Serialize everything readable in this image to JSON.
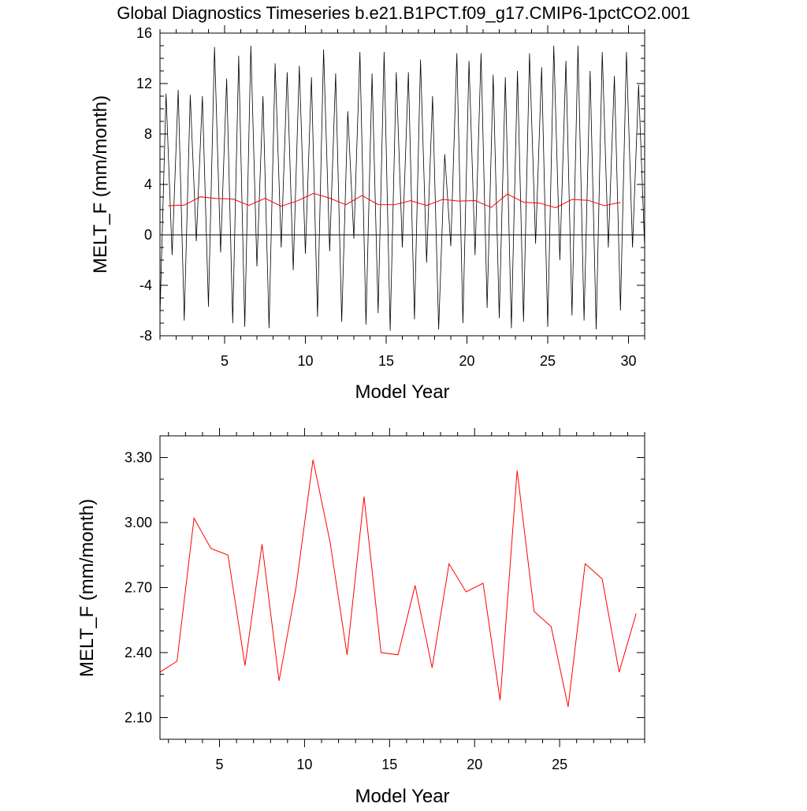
{
  "title": "Global Diagnostics Timeseries b.e21.B1PCT.f09_g17.CMIP6-1pctCO2.001",
  "colors": {
    "monthly": "#000000",
    "annual": "#ff0000",
    "zero_line": "#000000"
  },
  "chart_data": [
    {
      "type": "line",
      "xlabel": "Model Year",
      "ylabel": "MELT_F (mm/month)",
      "xlim": [
        1,
        31
      ],
      "ylim": [
        -8,
        16
      ],
      "x_ticks": [
        5,
        10,
        15,
        20,
        25,
        30
      ],
      "y_ticks": [
        -8,
        -4,
        0,
        4,
        8,
        12,
        16
      ],
      "y_tick_labels": [
        "-8",
        "-4",
        "0",
        "4",
        "8",
        "12",
        "16"
      ],
      "x_tick_labels": [
        "5",
        "10",
        "15",
        "20",
        "25",
        "30"
      ],
      "reference_line_y": 0,
      "series": [
        {
          "style": "monthly",
          "monthly_peaks": [
            11.2,
            11.5,
            11.1,
            11.0,
            14.9,
            12.4,
            14.2,
            15.0,
            11.0,
            13.6,
            12.9,
            13.4,
            12.5,
            14.7,
            12.8,
            9.8,
            14.5,
            12.8,
            14.5,
            12.9,
            12.9,
            13.9,
            11.0,
            6.4,
            14.4,
            13.8,
            14.4,
            12.7,
            12.5,
            13.0,
            14.4,
            13.3,
            15.0,
            13.8,
            15.0,
            13.0,
            14.5,
            12.6,
            14.5,
            11.9
          ],
          "monthly_troughs": [
            -6.4,
            -1.6,
            -6.8,
            -0.5,
            -5.7,
            -1.4,
            -7.0,
            -7.3,
            -2.5,
            -7.4,
            -1.0,
            -2.8,
            -1.5,
            -6.5,
            -1.3,
            -6.9,
            -0.3,
            -7.1,
            -6.2,
            -7.6,
            -1.0,
            -6.7,
            -2.2,
            -7.5,
            -0.9,
            -7.0,
            -1.6,
            -5.8,
            -6.6,
            -7.4,
            -6.9,
            -0.7,
            -7.3,
            -2.0,
            -6.4,
            -6.8,
            -7.5,
            -1.0,
            -6.0,
            -1.0
          ]
        },
        {
          "style": "annual",
          "x": [
            1.5,
            2.5,
            3.5,
            4.5,
            5.5,
            6.5,
            7.5,
            8.5,
            9.5,
            10.5,
            11.5,
            12.5,
            13.5,
            14.5,
            15.5,
            16.5,
            17.5,
            18.5,
            19.5,
            20.5,
            21.5,
            22.5,
            23.5,
            24.5,
            25.5,
            26.5,
            27.5,
            28.5,
            29.5
          ],
          "values": [
            2.31,
            2.36,
            3.02,
            2.88,
            2.85,
            2.34,
            2.9,
            2.27,
            2.7,
            3.29,
            2.91,
            2.39,
            3.12,
            2.4,
            2.39,
            2.71,
            2.33,
            2.81,
            2.68,
            2.72,
            2.18,
            3.24,
            2.59,
            2.52,
            2.15,
            2.81,
            2.74,
            2.31,
            2.58
          ]
        }
      ]
    },
    {
      "type": "line",
      "xlabel": "Model Year",
      "ylabel": "MELT_F (mm/month)",
      "xlim": [
        1.5,
        30
      ],
      "ylim": [
        2.0,
        3.4
      ],
      "x_ticks": [
        5,
        10,
        15,
        20,
        25
      ],
      "y_ticks": [
        2.1,
        2.4,
        2.7,
        3.0,
        3.3
      ],
      "y_tick_labels": [
        "2.10",
        "2.40",
        "2.70",
        "3.00",
        "3.30"
      ],
      "x_tick_labels": [
        "5",
        "10",
        "15",
        "20",
        "25"
      ],
      "series": [
        {
          "style": "annual",
          "x": [
            1.5,
            2.5,
            3.5,
            4.5,
            5.5,
            6.5,
            7.5,
            8.5,
            9.5,
            10.5,
            11.5,
            12.5,
            13.5,
            14.5,
            15.5,
            16.5,
            17.5,
            18.5,
            19.5,
            20.5,
            21.5,
            22.5,
            23.5,
            24.5,
            25.5,
            26.5,
            27.5,
            28.5,
            29.5
          ],
          "values": [
            2.31,
            2.36,
            3.02,
            2.88,
            2.85,
            2.34,
            2.9,
            2.27,
            2.7,
            3.29,
            2.91,
            2.39,
            3.12,
            2.4,
            2.39,
            2.71,
            2.33,
            2.81,
            2.68,
            2.72,
            2.18,
            3.24,
            2.59,
            2.52,
            2.15,
            2.81,
            2.74,
            2.31,
            2.58
          ]
        }
      ]
    }
  ]
}
